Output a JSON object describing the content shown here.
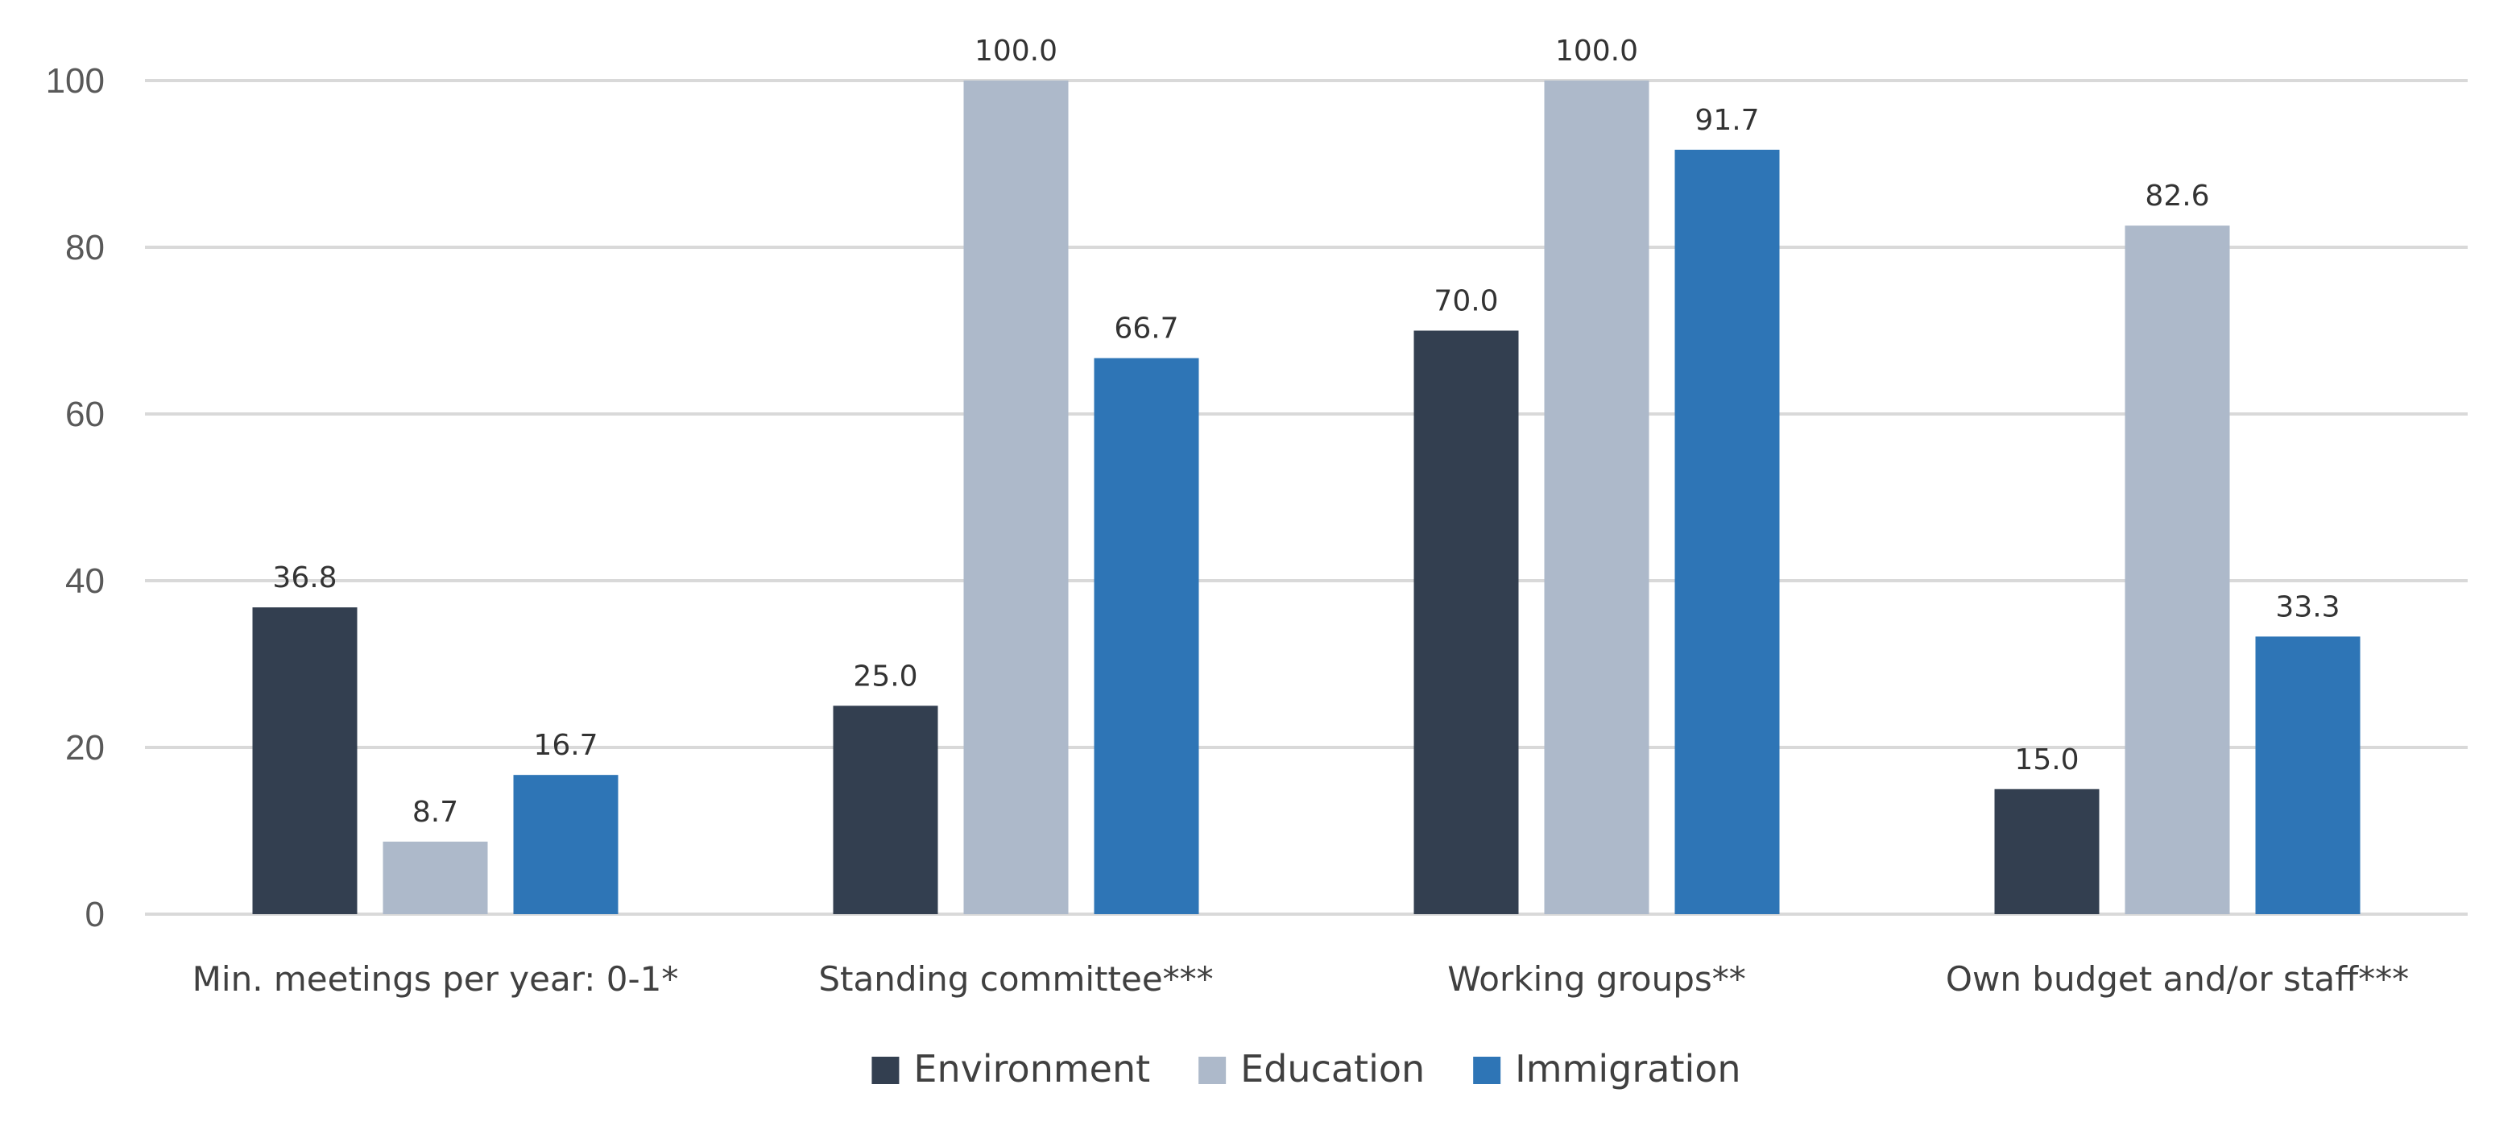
{
  "chart_data": {
    "type": "bar",
    "title": "",
    "xlabel": "",
    "ylabel": "",
    "ylim": [
      0,
      100
    ],
    "yticks": [
      0,
      20,
      40,
      60,
      80,
      100
    ],
    "grid": true,
    "legend_position": "bottom-center",
    "categories": [
      "Min. meetings per year: 0-1*",
      "Standing committee***",
      "Working groups**",
      "Own budget and/or staff***"
    ],
    "series": [
      {
        "name": "Environment",
        "color": "#333f50",
        "values": [
          36.8,
          25.0,
          70.0,
          15.0
        ],
        "labels": [
          "36.8",
          "25.0",
          "70.0",
          "15.0"
        ]
      },
      {
        "name": "Education",
        "color": "#adb9ca",
        "values": [
          8.7,
          100.0,
          100.0,
          82.6
        ],
        "labels": [
          "8.7",
          "100.0",
          "100.0",
          "82.6"
        ]
      },
      {
        "name": "Immigration",
        "color": "#2e75b6",
        "values": [
          16.7,
          66.7,
          91.7,
          33.3
        ],
        "labels": [
          "16.7",
          "66.7",
          "91.7",
          "33.3"
        ]
      }
    ]
  }
}
